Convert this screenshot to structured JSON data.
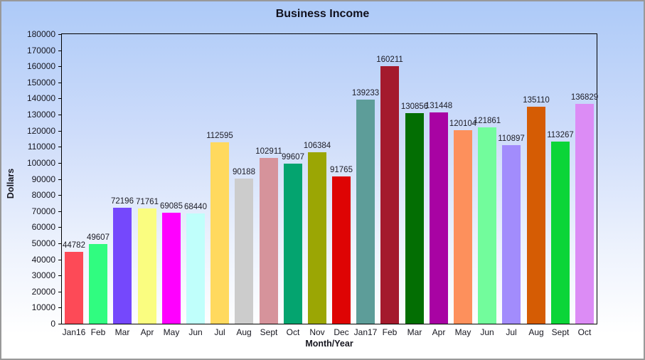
{
  "chart_data": {
    "type": "bar",
    "title": "Business Income",
    "xlabel": "Month/Year",
    "ylabel": "Dollars",
    "ylim": [
      0,
      180000
    ],
    "ytick_step": 10000,
    "grid": false,
    "legend": "none",
    "value_labels_shown": true,
    "categories": [
      "Jan16",
      "Feb",
      "Mar",
      "Apr",
      "May",
      "Jun",
      "Jul",
      "Aug",
      "Sept",
      "Oct",
      "Nov",
      "Dec",
      "Jan17",
      "Feb",
      "Mar",
      "Apr",
      "May",
      "Jun",
      "Jul",
      "Aug",
      "Sept",
      "Oct"
    ],
    "values": [
      44782,
      49607,
      72196,
      71761,
      69085,
      68440,
      112595,
      90188,
      102911,
      99607,
      106384,
      91765,
      139233,
      160211,
      130856,
      131448,
      120104,
      121861,
      110897,
      135110,
      113267,
      136829
    ],
    "bar_colors": [
      "#FD4A57",
      "#30FC80",
      "#7548FC",
      "#FAFD80",
      "#FF00FF",
      "#C0FFFB",
      "#FFD95E",
      "#CCCCCC",
      "#D6939B",
      "#04A46F",
      "#9BA604",
      "#DE0404",
      "#5D9D99",
      "#A41A2D",
      "#036E03",
      "#A803A3",
      "#FD905C",
      "#72FC9C",
      "#A28CFC",
      "#D55C04",
      "#0BD538",
      "#DC8CF5"
    ]
  },
  "colors": {
    "background_top": "#ADCAF8",
    "background_bottom": "#FFFFFF",
    "plot_border": "#000000",
    "outer_border": "#999999",
    "text": "#16161F"
  }
}
